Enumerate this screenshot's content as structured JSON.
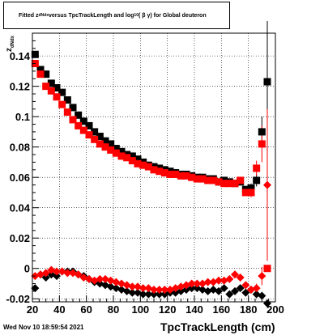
{
  "page": {
    "title_parts": {
      "prefix": "Fitted  z",
      "z_sub": "dNdx",
      "middle": "  versus TpcTrackLength and log",
      "log_sub": "10",
      "suffix": "( β γ) for Global deuteron"
    },
    "ylabel_main": "z",
    "ylabel_sub": "dNdx",
    "xlabel": "TpcTrackLength (cm)",
    "datestamp": "Wed Nov 10 18:59:54 2021"
  },
  "chart_data": {
    "type": "scatter",
    "title": "Fitted z_dNdx versus TpcTrackLength and log10(βγ) for Global deuteron",
    "xlabel": "TpcTrackLength (cm)",
    "ylabel": "z_dNdx",
    "xlim": [
      20,
      200
    ],
    "ylim": [
      -0.022,
      0.155
    ],
    "xticks": [
      20,
      40,
      60,
      80,
      100,
      120,
      140,
      160,
      180,
      200
    ],
    "yticks": [
      -0.02,
      0,
      0.02,
      0.04,
      0.06,
      0.08,
      0.1,
      0.12,
      0.14
    ],
    "ytick_labels": [
      "-0.02",
      "0",
      "0.02",
      "0.04",
      "0.06",
      "0.08",
      "0.1",
      "0.12",
      "0.14"
    ],
    "grid": true,
    "colors": {
      "black": "#000000",
      "red": "#ff0000"
    },
    "series": [
      {
        "marker": "square",
        "color": "#000000",
        "x": [
          22,
          26,
          30,
          34,
          38,
          42,
          46,
          50,
          54,
          58,
          62,
          66,
          70,
          74,
          78,
          82,
          86,
          90,
          94,
          98,
          102,
          106,
          110,
          114,
          118,
          122,
          126,
          130,
          134,
          138,
          142,
          146,
          150,
          154,
          158,
          162,
          166,
          170,
          174,
          178,
          182,
          186,
          190,
          194
        ],
        "y": [
          0.141,
          0.131,
          0.128,
          0.122,
          0.119,
          0.116,
          0.111,
          0.106,
          0.101,
          0.097,
          0.094,
          0.09,
          0.087,
          0.084,
          0.082,
          0.079,
          0.077,
          0.075,
          0.074,
          0.072,
          0.07,
          0.068,
          0.067,
          0.066,
          0.065,
          0.064,
          0.063,
          0.062,
          0.062,
          0.061,
          0.06,
          0.06,
          0.059,
          0.059,
          0.057,
          0.058,
          0.057,
          0.056,
          0.057,
          0.052,
          0.053,
          0.058,
          0.09,
          0.123
        ],
        "yerr": [
          0,
          0,
          0,
          0,
          0,
          0,
          0,
          0,
          0,
          0,
          0,
          0,
          0,
          0,
          0,
          0,
          0,
          0,
          0,
          0,
          0,
          0,
          0,
          0,
          0,
          0,
          0,
          0,
          0,
          0,
          0,
          0,
          0,
          0,
          0,
          0,
          0,
          0,
          0,
          0,
          0.003,
          0.004,
          0.01,
          0.04
        ]
      },
      {
        "marker": "square",
        "color": "#ff0000",
        "x": [
          22,
          26,
          30,
          34,
          38,
          42,
          46,
          50,
          54,
          58,
          62,
          66,
          70,
          74,
          78,
          82,
          86,
          90,
          94,
          98,
          102,
          106,
          110,
          114,
          118,
          122,
          126,
          130,
          134,
          138,
          142,
          146,
          150,
          154,
          158,
          162,
          166,
          170,
          174,
          178,
          182,
          186,
          190,
          194
        ],
        "y": [
          0.135,
          0.128,
          0.12,
          0.117,
          0.113,
          0.108,
          0.103,
          0.098,
          0.094,
          0.091,
          0.088,
          0.085,
          0.082,
          0.08,
          0.078,
          0.076,
          0.074,
          0.073,
          0.071,
          0.069,
          0.068,
          0.067,
          0.065,
          0.064,
          0.063,
          0.062,
          0.062,
          0.061,
          0.061,
          0.06,
          0.059,
          0.059,
          0.058,
          0.058,
          0.057,
          0.056,
          0.056,
          0.056,
          0.058,
          0.05,
          0.05,
          0.066,
          0.082,
          0.0
        ],
        "yerr": [
          0,
          0,
          0,
          0,
          0,
          0,
          0,
          0,
          0,
          0,
          0,
          0,
          0,
          0,
          0,
          0,
          0,
          0,
          0,
          0,
          0,
          0,
          0,
          0,
          0,
          0,
          0,
          0,
          0,
          0,
          0,
          0,
          0,
          0,
          0,
          0,
          0,
          0,
          0,
          0,
          0.003,
          0.005,
          0.012,
          0.0
        ]
      },
      {
        "marker": "diamond",
        "color": "#000000",
        "x": [
          22,
          26,
          30,
          34,
          38,
          42,
          46,
          50,
          54,
          58,
          62,
          66,
          70,
          74,
          78,
          82,
          86,
          90,
          94,
          98,
          102,
          106,
          110,
          114,
          118,
          122,
          126,
          130,
          134,
          138,
          142,
          146,
          150,
          154,
          158,
          162,
          166,
          170,
          174,
          178,
          182,
          186,
          190,
          194
        ],
        "y": [
          -0.013,
          -0.004,
          -0.006,
          -0.004,
          -0.005,
          -0.002,
          -0.002,
          -0.002,
          -0.004,
          -0.005,
          -0.007,
          -0.009,
          -0.01,
          -0.011,
          -0.012,
          -0.013,
          -0.014,
          -0.015,
          -0.016,
          -0.016,
          -0.017,
          -0.017,
          -0.017,
          -0.017,
          -0.017,
          -0.016,
          -0.016,
          -0.015,
          -0.014,
          -0.013,
          -0.013,
          -0.014,
          -0.015,
          -0.014,
          -0.015,
          -0.013,
          -0.017,
          -0.015,
          -0.013,
          -0.016,
          -0.014,
          -0.017,
          -0.018,
          -0.023
        ],
        "yerr": [
          0,
          0,
          0,
          0,
          0,
          0,
          0,
          0,
          0,
          0,
          0,
          0,
          0,
          0,
          0,
          0,
          0,
          0,
          0,
          0,
          0,
          0,
          0,
          0,
          0,
          0,
          0,
          0,
          0,
          0,
          0,
          0,
          0,
          0,
          0,
          0,
          0,
          0,
          0,
          0,
          0,
          0,
          0,
          0
        ]
      },
      {
        "marker": "diamond",
        "color": "#ff0000",
        "x": [
          22,
          26,
          30,
          34,
          38,
          42,
          46,
          50,
          54,
          58,
          62,
          66,
          70,
          74,
          78,
          82,
          86,
          90,
          94,
          98,
          102,
          106,
          110,
          114,
          118,
          122,
          126,
          130,
          134,
          138,
          142,
          146,
          150,
          154,
          158,
          162,
          166,
          170,
          174,
          178,
          182,
          186,
          190,
          194
        ],
        "y": [
          -0.005,
          -0.004,
          -0.003,
          -0.001,
          -0.002,
          -0.002,
          -0.003,
          -0.003,
          -0.004,
          -0.006,
          -0.007,
          -0.008,
          -0.007,
          -0.007,
          -0.008,
          -0.009,
          -0.01,
          -0.011,
          -0.012,
          -0.012,
          -0.013,
          -0.013,
          -0.014,
          -0.014,
          -0.014,
          -0.014,
          -0.013,
          -0.012,
          -0.011,
          -0.01,
          -0.01,
          -0.01,
          -0.009,
          -0.009,
          -0.008,
          -0.008,
          -0.007,
          -0.004,
          -0.006,
          -0.011,
          -0.014,
          -0.013,
          -0.005,
          0.055
        ],
        "yerr": [
          0,
          0,
          0,
          0,
          0,
          0,
          0,
          0,
          0,
          0,
          0,
          0,
          0,
          0,
          0,
          0,
          0,
          0,
          0,
          0,
          0,
          0,
          0,
          0,
          0,
          0,
          0,
          0,
          0,
          0,
          0,
          0,
          0,
          0,
          0,
          0,
          0,
          0,
          0,
          0,
          0,
          0.003,
          0.006,
          0.05
        ]
      }
    ]
  }
}
